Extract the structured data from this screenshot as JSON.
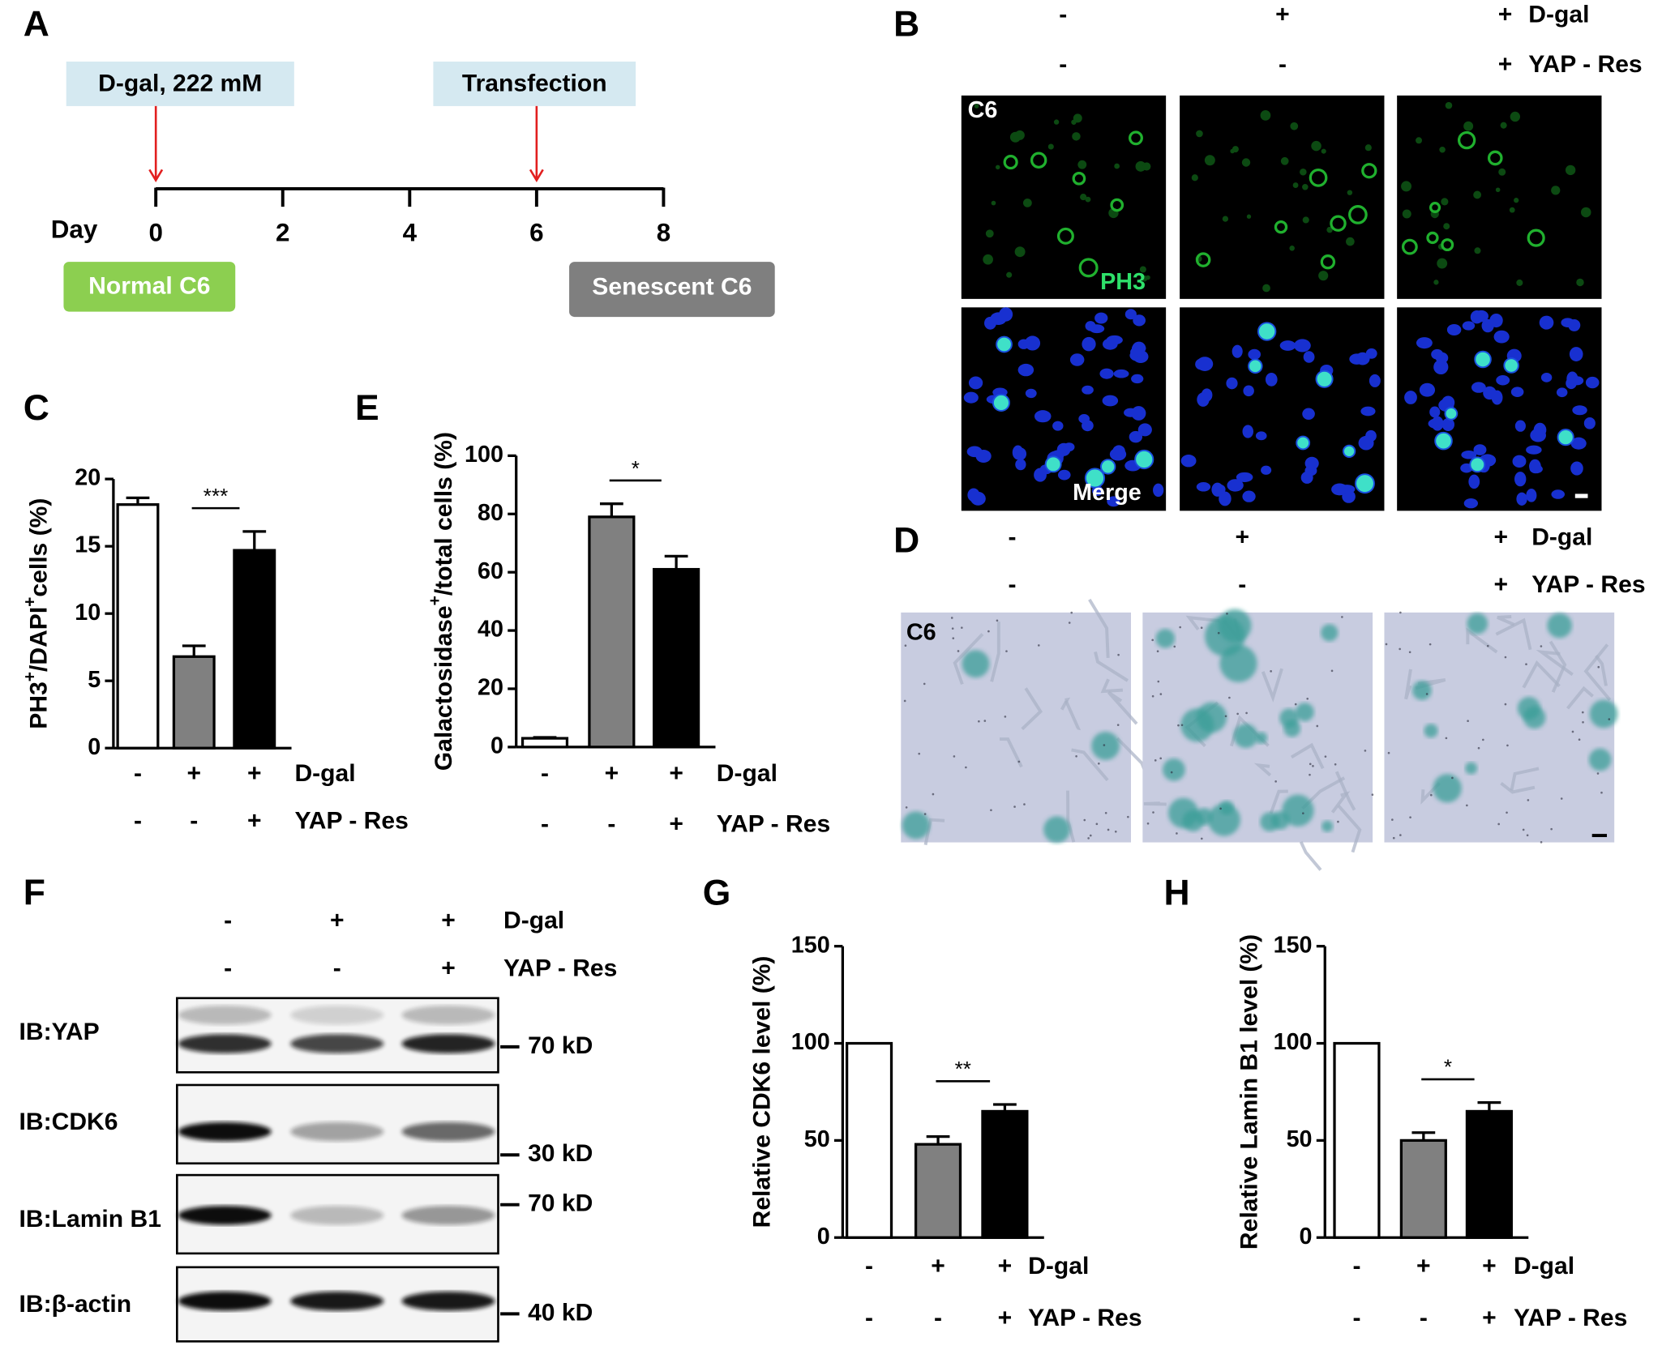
{
  "panel_labels": [
    "A",
    "B",
    "C",
    "D",
    "E",
    "F",
    "G",
    "H"
  ],
  "timeline": {
    "day_label": "Day",
    "xlim": [
      0,
      8
    ],
    "ticks": [
      0,
      2,
      4,
      6,
      8
    ],
    "events": [
      {
        "day": 0,
        "label": "D-gal, 222 mM"
      },
      {
        "day": 6,
        "label": "Transfection"
      }
    ],
    "start_label": "Normal C6",
    "end_label": "Senescent C6"
  },
  "immunofluorescence": {
    "conditions": [
      {
        "name": "D-gal",
        "signs": [
          "-",
          "+",
          "+"
        ]
      },
      {
        "name": "YAP - Res",
        "signs": [
          "-",
          "-",
          "+"
        ]
      }
    ],
    "cell_line": "C6",
    "stain": "PH3",
    "merge": "Merge"
  },
  "staining": {
    "conditions": [
      {
        "name": "D-gal",
        "signs": [
          "-",
          "+",
          "+"
        ]
      },
      {
        "name": "YAP - Res",
        "signs": [
          "-",
          "-",
          "+"
        ]
      }
    ],
    "cell_line": "C6"
  },
  "western_blot": {
    "conditions": [
      {
        "name": "D-gal",
        "signs": [
          "-",
          "+",
          "+"
        ]
      },
      {
        "name": "YAP - Res",
        "signs": [
          "-",
          "-",
          "+"
        ]
      }
    ],
    "blots": [
      {
        "label": "IB:YAP",
        "marker": "70 kD"
      },
      {
        "label": "IB:CDK6",
        "marker": "30 kD"
      },
      {
        "label": "IB:Lamin B1",
        "marker": "70 kD"
      },
      {
        "label": "IB:β-actin",
        "marker": "40 kD"
      }
    ]
  },
  "chart_data": [
    {
      "type": "bar",
      "ylabel": [
        "PH3",
        "+",
        "/DAPI",
        "+",
        "cells (%)"
      ],
      "conditions": [
        {
          "name": "D-gal",
          "signs": [
            "-",
            "+",
            "+"
          ]
        },
        {
          "name": "YAP - Res",
          "signs": [
            "-",
            "-",
            "+"
          ]
        }
      ],
      "values": [
        18.1,
        6.8,
        14.7
      ],
      "errors": [
        0.5,
        0.8,
        1.4
      ],
      "colors": [
        "#ffffff",
        "#808080",
        "#000000"
      ],
      "ylim": [
        0,
        20
      ],
      "yticks": [
        0,
        5,
        10,
        15,
        20
      ],
      "significance": "***"
    },
    {
      "type": "bar",
      "ylabel": [
        "Galactosidase",
        "+",
        "/total cells (%)"
      ],
      "conditions": [
        {
          "name": "D-gal",
          "signs": [
            "-",
            "+",
            "+"
          ]
        },
        {
          "name": "YAP - Res",
          "signs": [
            "-",
            "-",
            "+"
          ]
        }
      ],
      "values": [
        3,
        79,
        61
      ],
      "errors": [
        0.3,
        4.5,
        4.5
      ],
      "colors": [
        "#ffffff",
        "#808080",
        "#000000"
      ],
      "ylim": [
        0,
        100
      ],
      "yticks": [
        0,
        20,
        40,
        60,
        80,
        100
      ],
      "significance": "*"
    },
    {
      "type": "bar",
      "ylabel": [
        "Relative CDK6 level (%)"
      ],
      "conditions": [
        {
          "name": "D-gal",
          "signs": [
            "-",
            "+",
            "+"
          ]
        },
        {
          "name": "YAP - Res",
          "signs": [
            "-",
            "-",
            "+"
          ]
        }
      ],
      "values": [
        100,
        48,
        65
      ],
      "errors": [
        null,
        4,
        3.5
      ],
      "colors": [
        "#ffffff",
        "#808080",
        "#000000"
      ],
      "ylim": [
        0,
        150
      ],
      "yticks": [
        0,
        50,
        100,
        150
      ],
      "significance": "**"
    },
    {
      "type": "bar",
      "ylabel": [
        "Relative Lamin B1 level (%)"
      ],
      "conditions": [
        {
          "name": "D-gal",
          "signs": [
            "-",
            "+",
            "+"
          ]
        },
        {
          "name": "YAP - Res",
          "signs": [
            "-",
            "-",
            "+"
          ]
        }
      ],
      "values": [
        100,
        50,
        65
      ],
      "errors": [
        null,
        4,
        4.5
      ],
      "colors": [
        "#ffffff",
        "#808080",
        "#000000"
      ],
      "ylim": [
        0,
        150
      ],
      "yticks": [
        0,
        50,
        100,
        150
      ],
      "significance": "*"
    }
  ]
}
